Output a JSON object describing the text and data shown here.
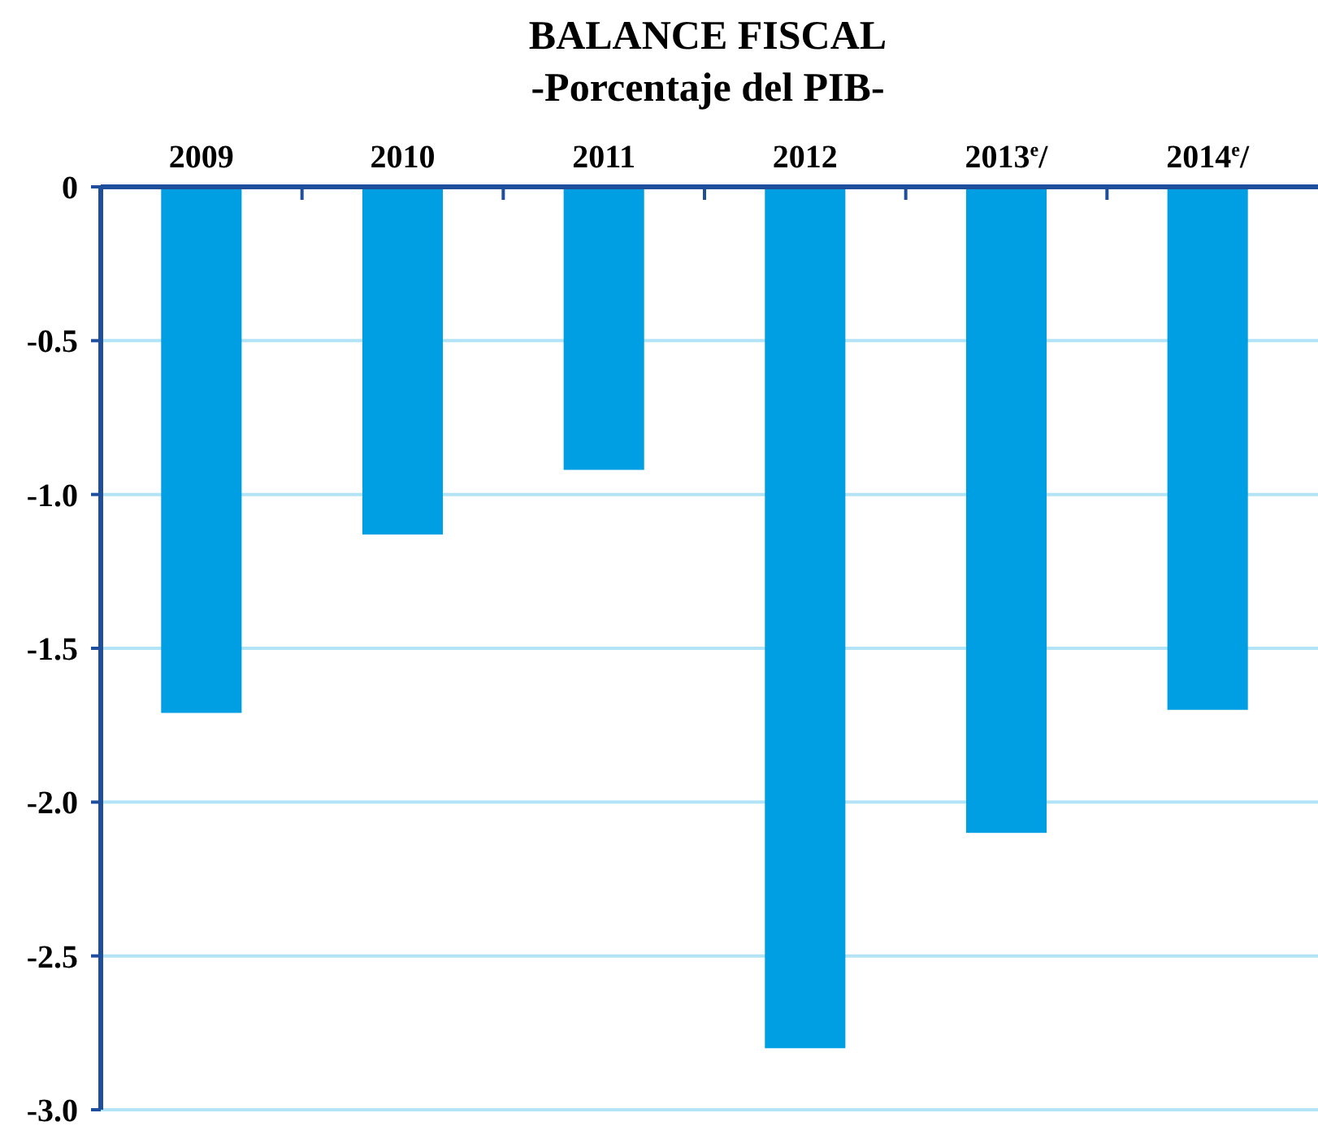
{
  "chart_data": {
    "type": "bar",
    "title": "BALANCE FISCAL",
    "subtitle": "-Porcentaje del PIB-",
    "categories": [
      "2009",
      "2010",
      "2011",
      "2012",
      "2013$^{e}$/",
      "2014$^{e}$/"
    ],
    "values": [
      -1.71,
      -1.13,
      -0.92,
      -2.8,
      -2.1,
      -1.7
    ],
    "color": "#009fe3",
    "ylim": [
      -3,
      0
    ],
    "yticks": [
      {
        "value": -3,
        "label": "-3.0"
      },
      {
        "value": -2.5,
        "label": "-2.5"
      },
      {
        "value": -2,
        "label": "-2.0"
      },
      {
        "value": -1.5,
        "label": "-1.5"
      },
      {
        "value": -1,
        "label": "-1.0"
      },
      {
        "value": -0.5,
        "label": "-0.5"
      },
      {
        "value": 0,
        "label": "0"
      }
    ],
    "grid": "y"
  }
}
